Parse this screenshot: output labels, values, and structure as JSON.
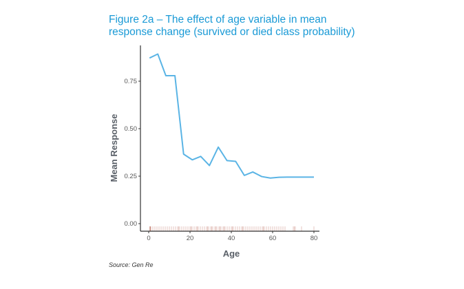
{
  "figure": {
    "title_line1": "Figure 2a – The effect of age variable in mean",
    "title_line2": "response change (survived or died class probability)",
    "source": "Source: Gen Re"
  },
  "chart_data": {
    "type": "line",
    "title": "Figure 2a – The effect of age variable in mean response change (survived or died class probability)",
    "xlabel": "Age",
    "ylabel": "Mean Response",
    "xlim": [
      -4,
      82
    ],
    "ylim": [
      -0.03,
      0.94
    ],
    "xticks": [
      0,
      20,
      40,
      60,
      80
    ],
    "xtick_labels": [
      "0",
      "20",
      "40",
      "60",
      "80"
    ],
    "yticks": [
      0,
      0.25,
      0.5,
      0.75
    ],
    "ytick_labels": [
      "0.00",
      "0.25",
      "0.50",
      "0.75"
    ],
    "grid": false,
    "line_color": "#5ab4e5",
    "rug_color": "#c8877a",
    "x": [
      0.4,
      4.4,
      8.3,
      12.7,
      16.9,
      21.1,
      25.2,
      29.4,
      33.7,
      37.9,
      42.1,
      46.3,
      50.4,
      54.7,
      58.9,
      63.1,
      67,
      71,
      75,
      80
    ],
    "y": [
      0.872,
      0.893,
      0.779,
      0.779,
      0.366,
      0.336,
      0.354,
      0.306,
      0.403,
      0.332,
      0.328,
      0.254,
      0.272,
      0.248,
      0.24,
      0.244,
      0.245,
      0.245,
      0.245,
      0.245
    ],
    "rug": [
      0.42,
      0.67,
      0.75,
      0.83,
      0.92,
      1,
      2,
      3,
      4,
      5,
      6,
      7,
      8,
      9,
      10,
      11,
      12,
      13,
      14,
      14.5,
      15,
      16,
      17,
      18,
      19,
      20,
      20.5,
      21,
      22,
      23,
      23.5,
      24,
      25,
      26,
      27,
      28,
      28.5,
      29,
      30,
      30.5,
      31,
      32,
      32.5,
      33,
      34,
      34.5,
      35,
      36,
      36.5,
      37,
      38,
      39,
      40,
      40.5,
      41,
      42,
      43,
      44,
      45,
      45.5,
      46,
      47,
      48,
      49,
      50,
      51,
      52,
      53,
      54,
      55,
      55.5,
      56,
      57,
      58,
      59,
      60,
      61,
      62,
      63,
      64,
      65,
      66,
      70,
      70.5,
      71,
      74,
      80
    ]
  }
}
